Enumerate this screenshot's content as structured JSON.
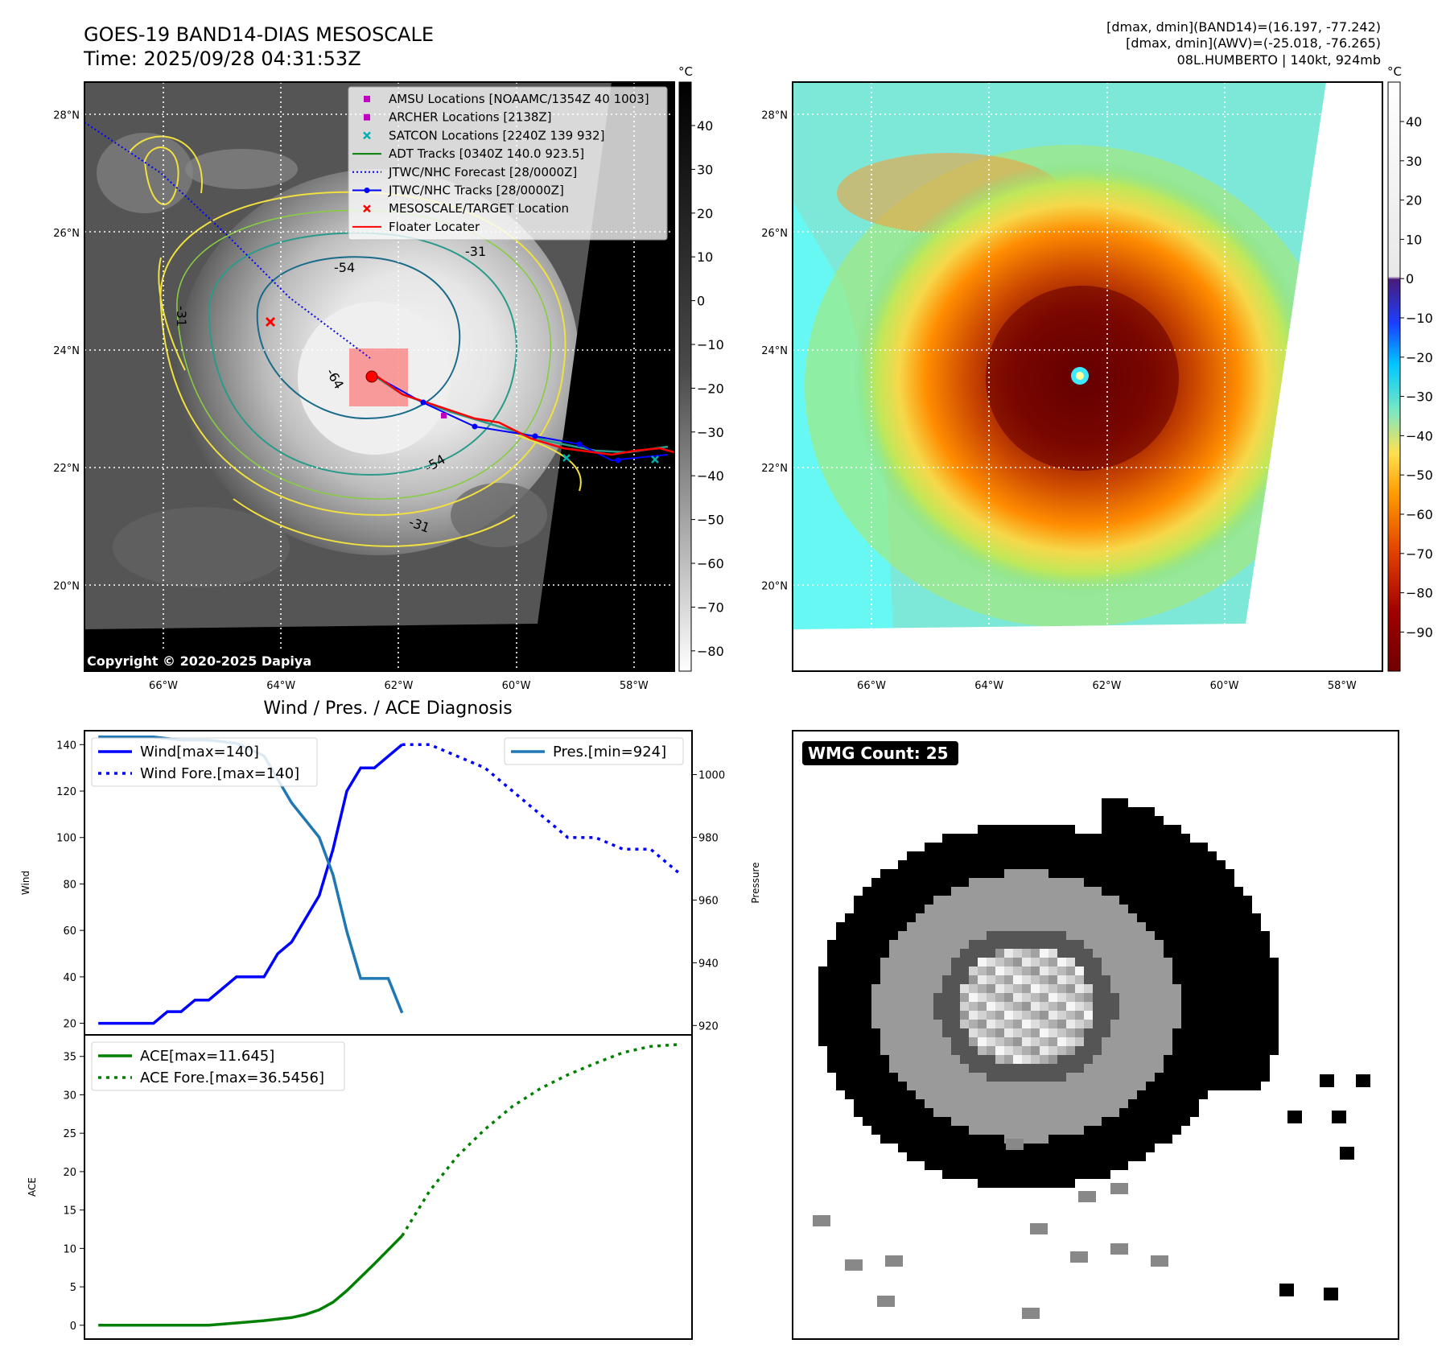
{
  "header": {
    "title_line1": "GOES-19 BAND14-DIAS MESOSCALE",
    "title_line2": "Time: 2025/09/28 04:31:53Z",
    "stats_line1": "[dmax, dmin](BAND14)=(16.197, -77.242)",
    "stats_line2": "[dmax, dmin](AWV)=(-25.018, -76.265)",
    "stats_line3": "08L.HUMBERTO | 140kt, 924mb"
  },
  "map": {
    "lat_labels": [
      "28°N",
      "26°N",
      "24°N",
      "22°N",
      "20°N"
    ],
    "lat_values": [
      28,
      26,
      24,
      22,
      20
    ],
    "lon_labels": [
      "66°W",
      "64°W",
      "62°W",
      "60°W",
      "58°W"
    ],
    "lon_values": [
      -66,
      -64,
      -62,
      -60,
      -58
    ],
    "copyright": "Copyright © 2020-2025 Dapiya",
    "contour_labels": [
      "-31",
      "-54",
      "-64",
      "-54",
      "-31",
      "-31"
    ],
    "legend": [
      {
        "label": "AMSU Locations [NOAAMC/1354Z 40 1003]",
        "color": "#c000c0",
        "marker": "square"
      },
      {
        "label": "ARCHER Locations [2138Z]",
        "color": "#c000c0",
        "marker": "square"
      },
      {
        "label": "SATCON Locations [2240Z 139 932]",
        "color": "#00b0b0",
        "marker": "x"
      },
      {
        "label": "ADT Tracks [0340Z 140.0 923.5]",
        "color": "#008000",
        "marker": "line"
      },
      {
        "label": "JTWC/NHC Forecast [28/0000Z]",
        "color": "#0000ff",
        "marker": "dotted"
      },
      {
        "label": "JTWC/NHC Tracks [28/0000Z]",
        "color": "#0000ff",
        "marker": "line-dot"
      },
      {
        "label": "MESOSCALE/TARGET Location",
        "color": "#ff0000",
        "marker": "x"
      },
      {
        "label": "Floater Locater",
        "color": "#ff0000",
        "marker": "line"
      }
    ]
  },
  "colorbar_gray": {
    "unit": "°C",
    "ticks": [
      "40",
      "30",
      "20",
      "10",
      "0",
      "−10",
      "−20",
      "−30",
      "−40",
      "−50",
      "−60",
      "−70",
      "−80"
    ],
    "values": [
      40,
      30,
      20,
      10,
      0,
      -10,
      -20,
      -30,
      -40,
      -50,
      -60,
      -70,
      -80
    ]
  },
  "colorbar_color": {
    "unit": "°C",
    "ticks": [
      "40",
      "30",
      "20",
      "10",
      "0",
      "−10",
      "−20",
      "−30",
      "−40",
      "−50",
      "−60",
      "−70",
      "−80",
      "−90"
    ],
    "values": [
      40,
      30,
      20,
      10,
      0,
      -10,
      -20,
      -30,
      -40,
      -50,
      -60,
      -70,
      -80,
      -90
    ]
  },
  "wmg": {
    "label": "WMG Count: 25"
  },
  "chart_data": [
    {
      "type": "line",
      "title": "Wind / Pres. / ACE Diagnosis",
      "ylabel": "Wind",
      "ylabel_right": "Pressure",
      "ylim": [
        15,
        146
      ],
      "ylim_right": [
        917,
        1014
      ],
      "yticks": [
        20,
        40,
        60,
        80,
        100,
        120,
        140
      ],
      "yticks_right": [
        920,
        940,
        960,
        980,
        1000
      ],
      "xlim": [
        -0.5,
        21.5
      ],
      "series": [
        {
          "name": "Wind[max=140]",
          "color": "#0000ff",
          "style": "solid",
          "x": [
            0,
            1,
            2,
            2.5,
            3,
            3.5,
            4,
            5,
            6,
            6.5,
            7,
            8,
            8.5,
            9,
            9.5,
            10,
            10.5,
            11
          ],
          "values": [
            20,
            20,
            20,
            25,
            25,
            30,
            30,
            40,
            40,
            50,
            55,
            75,
            95,
            120,
            130,
            130,
            135,
            140
          ]
        },
        {
          "name": "Wind Fore.[max=140]",
          "color": "#0000ff",
          "style": "dotted",
          "x": [
            11,
            12,
            13,
            14,
            15,
            16,
            17,
            18,
            19,
            20,
            21
          ],
          "values": [
            140,
            140,
            135,
            130,
            120,
            110,
            100,
            100,
            95,
            95,
            85
          ]
        },
        {
          "name": "Pres.[min=924]",
          "color": "#1f77b4",
          "style": "solid",
          "axis": "right",
          "x": [
            0,
            1,
            2,
            3,
            4,
            5,
            6,
            7,
            8,
            8.5,
            9,
            9.5,
            10,
            10.5,
            11
          ],
          "values": [
            1012,
            1012,
            1012,
            1011,
            1011,
            1010,
            1006,
            991,
            980,
            968,
            950,
            935,
            935,
            935,
            924
          ]
        }
      ]
    },
    {
      "type": "line",
      "ylabel": "ACE",
      "ylim": [
        -1.8,
        37.8
      ],
      "yticks": [
        0,
        5,
        10,
        15,
        20,
        25,
        30,
        35
      ],
      "xlim": [
        -0.5,
        21.5
      ],
      "series": [
        {
          "name": "ACE[max=11.645]",
          "color": "#008000",
          "style": "solid",
          "x": [
            0,
            2,
            4,
            5,
            6,
            7,
            7.5,
            8,
            8.5,
            9,
            10,
            11
          ],
          "values": [
            0,
            0,
            0,
            0.3,
            0.6,
            1.0,
            1.4,
            2.0,
            3.0,
            4.5,
            8.0,
            11.645
          ]
        },
        {
          "name": "ACE Fore.[max=36.5456]",
          "color": "#008000",
          "style": "dotted",
          "x": [
            11,
            12,
            13,
            14,
            15,
            16,
            17,
            18,
            19,
            20,
            21
          ],
          "values": [
            11.645,
            17.5,
            22.0,
            25.5,
            28.5,
            30.8,
            32.6,
            34.1,
            35.5,
            36.3,
            36.5456
          ]
        }
      ]
    }
  ]
}
